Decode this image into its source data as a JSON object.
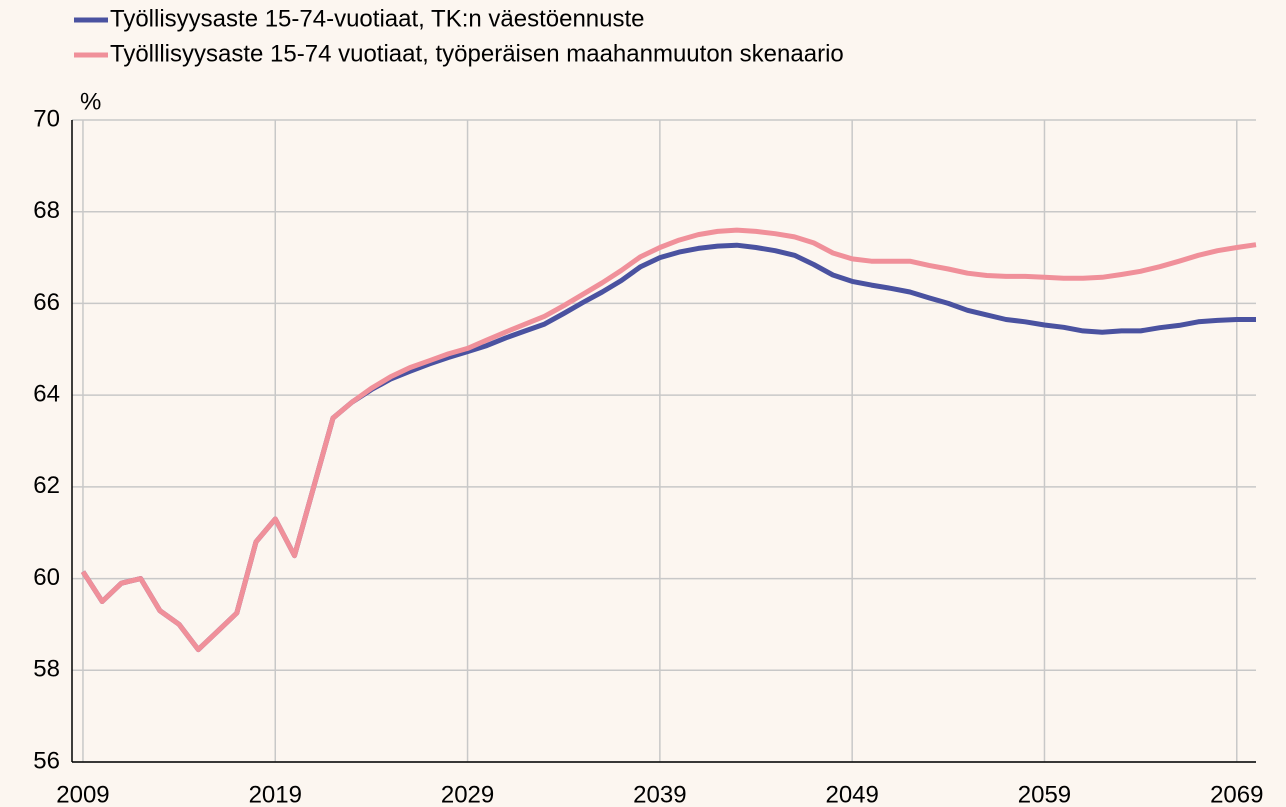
{
  "chart_data": {
    "type": "line",
    "y_unit": "%",
    "x": [
      2009,
      2010,
      2011,
      2012,
      2013,
      2014,
      2015,
      2016,
      2017,
      2018,
      2019,
      2020,
      2021,
      2022,
      2023,
      2024,
      2025,
      2026,
      2027,
      2028,
      2029,
      2030,
      2031,
      2032,
      2033,
      2034,
      2035,
      2036,
      2037,
      2038,
      2039,
      2040,
      2041,
      2042,
      2043,
      2044,
      2045,
      2046,
      2047,
      2048,
      2049,
      2050,
      2051,
      2052,
      2053,
      2054,
      2055,
      2056,
      2057,
      2058,
      2059,
      2060,
      2061,
      2062,
      2063,
      2064,
      2065,
      2066,
      2067,
      2068,
      2069,
      2070
    ],
    "series": [
      {
        "name": "Työllisyysaste 15-74-vuotiaat, TK:n väestöennuste",
        "color": "#4a52a0",
        "values": [
          60.15,
          59.5,
          59.9,
          60.0,
          59.3,
          59.0,
          58.45,
          58.85,
          59.25,
          60.8,
          61.3,
          60.5,
          62.0,
          63.5,
          63.85,
          64.12,
          64.35,
          64.52,
          64.68,
          64.82,
          64.95,
          65.08,
          65.25,
          65.4,
          65.55,
          65.78,
          66.02,
          66.25,
          66.5,
          66.8,
          67.0,
          67.12,
          67.2,
          67.25,
          67.27,
          67.22,
          67.15,
          67.05,
          66.85,
          66.62,
          66.48,
          66.4,
          66.33,
          66.25,
          66.12,
          66.0,
          65.85,
          65.75,
          65.65,
          65.6,
          65.53,
          65.48,
          65.4,
          65.37,
          65.4,
          65.4,
          65.47,
          65.52,
          65.6,
          65.63,
          65.65,
          65.65
        ]
      },
      {
        "name": "Työlllisyysaste 15-74 vuotiaat, työperäisen maahanmuuton skenaario",
        "color": "#f0909a",
        "values": [
          60.15,
          59.5,
          59.9,
          60.0,
          59.3,
          59.0,
          58.45,
          58.85,
          59.25,
          60.8,
          61.3,
          60.5,
          62.0,
          63.5,
          63.85,
          64.15,
          64.4,
          64.6,
          64.75,
          64.9,
          65.02,
          65.2,
          65.38,
          65.55,
          65.72,
          65.95,
          66.2,
          66.45,
          66.72,
          67.02,
          67.22,
          67.38,
          67.5,
          67.57,
          67.6,
          67.57,
          67.52,
          67.45,
          67.32,
          67.1,
          66.97,
          66.92,
          66.92,
          66.92,
          66.83,
          66.75,
          66.66,
          66.61,
          66.59,
          66.59,
          66.57,
          66.55,
          66.55,
          66.57,
          66.63,
          66.7,
          66.8,
          66.92,
          67.05,
          67.15,
          67.22,
          67.28
        ]
      }
    ],
    "xlim": [
      2008.43,
      2070
    ],
    "xticks": [
      2009,
      2019,
      2029,
      2039,
      2049,
      2059,
      2069
    ],
    "ylim": [
      56,
      70
    ],
    "yticks": [
      56,
      58,
      60,
      62,
      64,
      66,
      68,
      70
    ],
    "grid": true
  }
}
